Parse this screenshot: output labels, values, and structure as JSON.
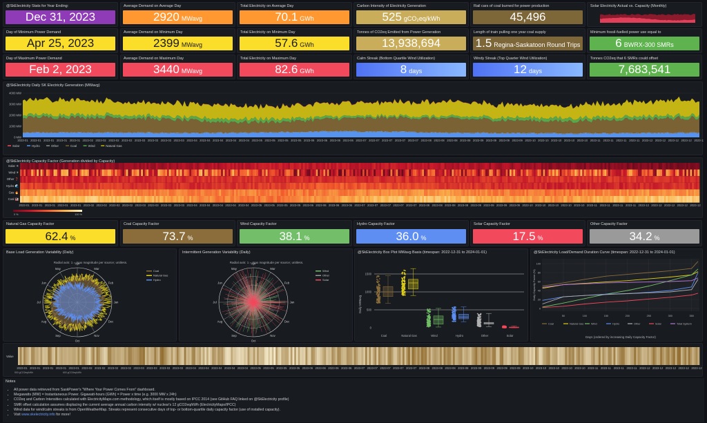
{
  "stats": [
    {
      "title": "@SkElectricity Stats for Year Ending:",
      "value": "Dec 31, 2023",
      "unit": "",
      "color": "#8f3bb8",
      "dark": false
    },
    {
      "title": "Average Demand on Average Day",
      "value": "2920",
      "unit": "MWavg",
      "color": "#ff9830",
      "dark": false
    },
    {
      "title": "Total Electricity on Average Day",
      "value": "70.1",
      "unit": "GWh",
      "color": "#ff9830",
      "dark": false
    },
    {
      "title": "Carbon Intensity of Electricity Generation",
      "value": "525",
      "unit": "gCO₂eq/kWh",
      "color": "#c9ad5b",
      "dark": false
    },
    {
      "title": "Rail cars of coal burned for power production",
      "value": "45,496",
      "unit": "",
      "color": "#7d6638",
      "dark": false
    },
    {
      "title": "Solar Electricity Actual vs. Capacity (Monthly)",
      "value": "",
      "unit": "",
      "color": "",
      "dark": false
    },
    {
      "title": "Day of Minimum Power Demand",
      "value": "Apr 25, 2023",
      "unit": "",
      "color": "#fade2a",
      "dark": true
    },
    {
      "title": "Average Demand on Minimum Day",
      "value": "2399",
      "unit": "MWavg",
      "color": "#fade2a",
      "dark": true
    },
    {
      "title": "Total Electricity on Minimum Day",
      "value": "57.6",
      "unit": "GWh",
      "color": "#fade2a",
      "dark": true
    },
    {
      "title": "Tonnes of CO2eq Emitted from Power Generation",
      "value": "13,938,694",
      "unit": "",
      "color": "#c9ad5b",
      "dark": false
    },
    {
      "title": "Length of train pulling one year coal supply",
      "value": "1.5",
      "unit": "Regina-Saskatoon Round Trips",
      "color": "#7d6638",
      "dark": false
    },
    {
      "title": "Minimum fossil-fuelled power use equal to",
      "value": "6",
      "unit": "BWRX-300 SMRs",
      "color": "#5fb34e",
      "dark": false
    },
    {
      "title": "Day of Maximum Power Demand",
      "value": "Feb 2, 2023",
      "unit": "",
      "color": "#f2495c",
      "dark": false
    },
    {
      "title": "Average Demand on Maximum Day",
      "value": "3440",
      "unit": "MWavg",
      "color": "#f2495c",
      "dark": false
    },
    {
      "title": "Total Electricity on Maximum Day",
      "value": "82.6",
      "unit": "GWh",
      "color": "#f2495c",
      "dark": false
    },
    {
      "title": "Calm Streak (Bottom Quartile Wind Utilization)",
      "value": "8",
      "unit": "days",
      "color": "blue",
      "dark": false
    },
    {
      "title": "Windy Streak (Top Quarter Wind Utilization)",
      "value": "12",
      "unit": "days",
      "color": "blue",
      "dark": false
    },
    {
      "title": "Tonnes CO2eq that 6 SMRs could offset",
      "value": "7,683,541",
      "unit": "",
      "color": "#5fb34e",
      "dark": false
    }
  ],
  "capacity": [
    {
      "title": "Natural Gas Capacity Factor",
      "value": "62.4",
      "unit": "%",
      "color": "#fade2a",
      "dark": true
    },
    {
      "title": "Coal Capacity Factor",
      "value": "73.7",
      "unit": "%",
      "color": "#8a6d3b",
      "dark": false
    },
    {
      "title": "Wind Capacity Factor",
      "value": "38.1",
      "unit": "%",
      "color": "#73bf69",
      "dark": false
    },
    {
      "title": "Hydro Capacity Factor",
      "value": "36.0",
      "unit": "%",
      "color": "#5e8ef2",
      "dark": false
    },
    {
      "title": "Solar Capacity Factor",
      "value": "17.5",
      "unit": "%",
      "color": "#f2495c",
      "dark": false
    },
    {
      "title": "Other Capacity Factor",
      "value": "34.2",
      "unit": "%",
      "color": "#9a9a9a",
      "dark": false
    }
  ],
  "x_ticks": [
    "2023-01",
    "2023-01",
    "2023-01",
    "2023-01",
    "2023-01",
    "2023-02",
    "2023-02",
    "2023-02",
    "2023-02",
    "2023-03",
    "2023-03",
    "2023-03",
    "2023-03",
    "2023-04",
    "2023-04",
    "2023-04",
    "2023-04",
    "2023-04",
    "2023-05",
    "2023-05",
    "2023-05",
    "2023-05",
    "2023-06",
    "2023-06",
    "2023-06",
    "2023-06",
    "2023-07",
    "2023-07",
    "2023-07",
    "2023-07",
    "2023-07",
    "2023-08",
    "2023-08",
    "2023-08",
    "2023-08",
    "2023-09",
    "2023-09",
    "2023-09",
    "2023-09",
    "2023-10",
    "2023-10",
    "2023-10",
    "2023-10",
    "2023-10",
    "2023-11",
    "2023-11",
    "2023-11",
    "2023-11",
    "2023-12",
    "2023-12",
    "2023-12",
    "2023-12",
    "2023-12"
  ],
  "chart_data": [
    {
      "type": "area",
      "title": "@SkElectricity Daily SK Electricity Generation (MWavg)",
      "stacked": true,
      "y_ticks": [
        "0 MW",
        "1000 MW",
        "2000 MW",
        "3000 MW",
        "4000 MW"
      ],
      "ylim": [
        0,
        4000
      ],
      "legend": "bottom-left",
      "x_resolution": "monthly mean (MW)",
      "series": [
        {
          "name": "Solar",
          "color": "#f2495c",
          "values": [
            5,
            8,
            12,
            18,
            20,
            22,
            22,
            20,
            15,
            10,
            6,
            4
          ]
        },
        {
          "name": "Hydro",
          "color": "#5794f2",
          "values": [
            420,
            400,
            380,
            360,
            420,
            520,
            480,
            400,
            360,
            340,
            350,
            380
          ]
        },
        {
          "name": "Other",
          "color": "#8e8e8e",
          "values": [
            60,
            60,
            60,
            60,
            60,
            60,
            60,
            60,
            60,
            60,
            60,
            60
          ]
        },
        {
          "name": "Coal",
          "color": "#7a6234",
          "values": [
            1350,
            1350,
            1200,
            950,
            900,
            1100,
            1250,
            1250,
            1150,
            1050,
            1200,
            1300
          ]
        },
        {
          "name": "Wind",
          "color": "#5aa64b",
          "values": [
            230,
            260,
            250,
            300,
            280,
            200,
            150,
            180,
            250,
            300,
            260,
            250
          ]
        },
        {
          "name": "Natural Gas",
          "color": "#c4b514",
          "values": [
            1350,
            1250,
            1200,
            1200,
            1150,
            1150,
            1250,
            1300,
            1150,
            1100,
            1250,
            1350
          ]
        }
      ]
    },
    {
      "type": "heatmap",
      "title": "@SkElectricity Capacity Factor (Generation divided by Capacity)",
      "rows": [
        "Solar ☀",
        "Wind ✈",
        "Other ❓",
        "Hydro 🌊",
        "Gas 🔥",
        "Coal 🏭"
      ],
      "colorbar": [
        "0 %",
        "100 %"
      ],
      "monthly_values": [
        [
          0.05,
          0.1,
          0.15,
          0.2,
          0.25,
          0.25,
          0.25,
          0.22,
          0.17,
          0.1,
          0.06,
          0.04
        ],
        [
          0.45,
          0.4,
          0.42,
          0.45,
          0.4,
          0.3,
          0.25,
          0.3,
          0.4,
          0.45,
          0.42,
          0.4
        ],
        [
          0.3,
          0.3,
          0.32,
          0.35,
          0.35,
          0.33,
          0.34,
          0.35,
          0.33,
          0.35,
          0.36,
          0.34
        ],
        [
          0.4,
          0.38,
          0.35,
          0.33,
          0.4,
          0.5,
          0.45,
          0.38,
          0.33,
          0.3,
          0.3,
          0.34
        ],
        [
          0.65,
          0.62,
          0.6,
          0.62,
          0.58,
          0.6,
          0.65,
          0.66,
          0.6,
          0.57,
          0.62,
          0.66
        ],
        [
          0.8,
          0.8,
          0.72,
          0.6,
          0.58,
          0.7,
          0.78,
          0.8,
          0.72,
          0.66,
          0.76,
          0.82
        ]
      ]
    },
    {
      "type": "polar",
      "title": "Base Load Generation Variability (Daily)",
      "subtitle": "Radial axis: 1 = max magnitude per source; unitless.",
      "angular_ticks": [
        "Jan",
        "Feb",
        "Mar",
        "Apr",
        "May",
        "Jun",
        "Jul",
        "Aug",
        "Sep",
        "Oct",
        "Nov",
        "Dec"
      ],
      "series": [
        {
          "name": "Coal",
          "color": "#8a6d3b",
          "mean": 0.7
        },
        {
          "name": "Natural Gas",
          "color": "#e0cf1a",
          "mean": 0.8
        },
        {
          "name": "Hydro",
          "color": "#5e8ef2",
          "mean": 0.55
        }
      ]
    },
    {
      "type": "polar",
      "title": "Intermittent Generation Variability (Daily)",
      "subtitle": "Radial axis: 1 = max magnitude per source; unitless.",
      "angular_ticks": [
        "Jan",
        "Feb",
        "Mar",
        "Apr",
        "May",
        "Jun",
        "Jul",
        "Aug",
        "Sep",
        "Oct",
        "Nov",
        "Dec"
      ],
      "series": [
        {
          "name": "Wind",
          "color": "#73bf69",
          "mean": 0.5
        },
        {
          "name": "Other",
          "color": "#9a9a9a",
          "mean": 0.45
        },
        {
          "name": "Solar",
          "color": "#f2495c",
          "mean": 0.55
        }
      ]
    },
    {
      "type": "box",
      "title": "@SkElectricity Box Plot MWavg Basis (timespan: 2022-12-31 to 2024-01-01)",
      "ylabel": "Daily MWavg",
      "y_ticks": [
        0,
        500,
        1000,
        1500
      ],
      "categories": [
        "Coal",
        "Natural Gas",
        "Wind",
        "Hydro",
        "Other",
        "Solar"
      ],
      "colors": [
        "#8a6d3b",
        "#e0cf1a",
        "#73bf69",
        "#5e8ef2",
        "#b0b0b0",
        "#f2495c"
      ],
      "min": [
        680,
        900,
        20,
        170,
        30,
        0
      ],
      "q1": [
        870,
        1080,
        100,
        250,
        100,
        2
      ],
      "median": [
        1000,
        1250,
        230,
        300,
        130,
        8
      ],
      "q3": [
        1150,
        1350,
        330,
        380,
        150,
        20
      ],
      "max": [
        1450,
        1650,
        540,
        580,
        400,
        50
      ]
    },
    {
      "type": "line",
      "title": "@SkElectricity Load/Demand Duration Curve (timespan: 2022-12-31 to 2024-01-01)",
      "xlabel": "Days (ordered by increasing Daily Capacity Factor)",
      "ylabel": "Daily Capacity Factor (%)",
      "x": [
        1,
        50,
        100,
        150,
        200,
        250,
        300,
        350,
        365
      ],
      "x_ticks": [
        50,
        100,
        150,
        200,
        250,
        300,
        350
      ],
      "y_ticks": [
        0,
        20,
        40,
        60,
        80,
        100
      ],
      "ylim": [
        0,
        105
      ],
      "legend": "bottom",
      "series": [
        {
          "name": "Coal",
          "color": "#8a6d3b",
          "values": [
            50,
            57,
            65,
            72,
            76,
            80,
            84,
            89,
            105
          ]
        },
        {
          "name": "Natural Gas",
          "color": "#e0cf1a",
          "values": [
            45,
            53,
            56,
            59,
            62,
            66,
            70,
            75,
            82
          ]
        },
        {
          "name": "Wind",
          "color": "#73bf69",
          "values": [
            3,
            12,
            22,
            32,
            40,
            50,
            62,
            75,
            88
          ]
        },
        {
          "name": "Hydro",
          "color": "#5e8ef2",
          "values": [
            18,
            26,
            29,
            32,
            33,
            36,
            40,
            48,
            80
          ]
        },
        {
          "name": "Other",
          "color": "#b0b0b0",
          "values": [
            10,
            26,
            29,
            31,
            33,
            35,
            37,
            42,
            65
          ]
        },
        {
          "name": "Solar",
          "color": "#f2495c",
          "values": [
            2,
            5,
            10,
            14,
            17,
            21,
            25,
            30,
            34
          ]
        },
        {
          "name": "Total System",
          "color": "#b877d9",
          "values": [
            47,
            53,
            55,
            57,
            58,
            59,
            60,
            62,
            68
          ]
        }
      ]
    },
    {
      "type": "heatmap",
      "title": "",
      "row_label": "Value",
      "colorbar": [
        "500 gCO2eq/kWh",
        "600 gCO2eq/kWh"
      ],
      "monthly_values": [
        530,
        520,
        540,
        510,
        500,
        520,
        530,
        545,
        525,
        515,
        530,
        540
      ]
    }
  ],
  "notes": {
    "title": "Notes",
    "items": [
      "All power data retrieved from SaskPower's \"Where Your Power Comes From\" dashboard.",
      "Megawatts (MW) = Instantaneous Power. Gigawatt-hours (GWh) = Power x time (e.g. 3000 MW x 24h)",
      "CO2eq and Carbon Intensities calculated with ElectricityMaps.com methodology, which itself is mostly based on IPCC 2014 (see GitHub FAQ linked on @SkElectricity profile)",
      "SMR offset calculation assumes displacing the current average annual carbon intensity w/ nuclear's 12 gCO2eq/kWh (ElectricityMaps/IPCC)",
      "Wind data for wind/calm streaks is from OpenWeatherMap. Streaks represent consecutive days of top- or bottom-quartile daily capacity factor (use of installed capacity)."
    ],
    "visit_prefix": "Visit ",
    "visit_link": "www.skelectricity.info",
    "visit_suffix": " for more!"
  }
}
